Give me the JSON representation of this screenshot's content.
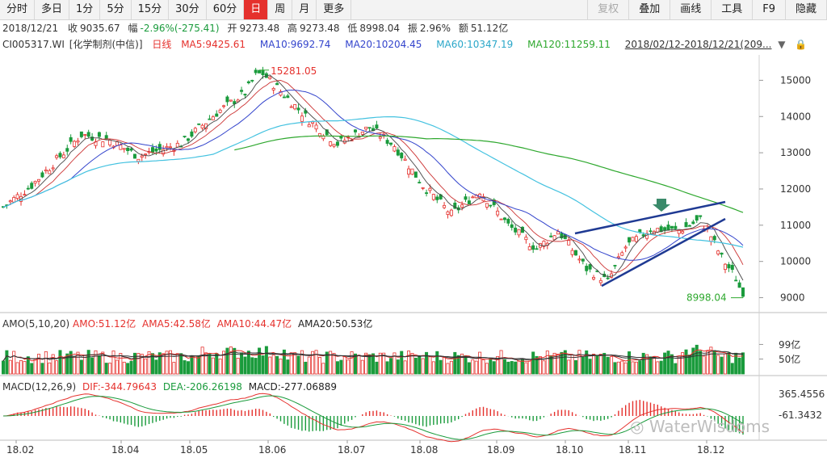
{
  "toolbar": {
    "left": [
      "分时",
      "多日",
      "1分",
      "5分",
      "15分",
      "30分",
      "60分",
      "日",
      "周",
      "月",
      "更多"
    ],
    "active": "日",
    "right": [
      "复权",
      "叠加",
      "画线",
      "工具",
      "F9",
      "隐藏"
    ]
  },
  "quote": {
    "date": "2018/12/21",
    "close_label": "收",
    "close": "9035.67",
    "change_label": "幅",
    "change": "-2.96%(-275.41)",
    "open_label": "开",
    "open": "9273.48",
    "high_label": "高",
    "high": "9273.48",
    "low_label": "低",
    "low": "8998.04",
    "amp_label": "振",
    "amp": "2.96%",
    "amount_label": "额",
    "amount": "51.12亿"
  },
  "ma_line": {
    "code": "CI005317.WI",
    "name": "[化学制剂(中信)]",
    "period": "日线",
    "ma5": "MA5:9425.61",
    "ma10": "MA10:9692.74",
    "ma20": "MA20:10204.45",
    "ma60": "MA60:10347.19",
    "ma120": "MA120:11259.11",
    "range": "2018/02/12-2018/12/21(209..."
  },
  "amo_line": {
    "title": "AMO(5,10,20)",
    "amo": "AMO:51.12亿",
    "ama5": "AMA5:42.58亿",
    "ama10": "AMA10:44.47亿",
    "ama20": "AMA20:50.53亿",
    "tick_hi": "99亿",
    "tick_lo": "50亿"
  },
  "macd_line": {
    "title": "MACD(12,26,9)",
    "dif": "DIF:-344.79643",
    "dea": "DEA:-206.26198",
    "macd": "MACD:-277.06889",
    "tick_hi": "365.4556",
    "tick_lo": "-61.3432"
  },
  "watermark": "WaterWisdoms",
  "colors": {
    "up": "#e5312d",
    "down": "#1a9b3c",
    "ma5": "#333333",
    "ma10": "#d4a017",
    "ma20": "#3344cc",
    "ma60": "#44c2e0",
    "ma120": "#2ea82e",
    "trend": "#1f3a93"
  },
  "chart_data": {
    "type": "candlestick",
    "y_ticks": [
      9000,
      10000,
      11000,
      12000,
      13000,
      14000,
      15000
    ],
    "ylim": [
      8700,
      15700
    ],
    "x_ticks": [
      "18.02",
      "18.04",
      "18.05",
      "18.06",
      "18.07",
      "18.08",
      "18.09",
      "18.10",
      "18.11",
      "18.12"
    ],
    "annotations": {
      "high": "15281.05",
      "low": "8998.04"
    },
    "price_path": [
      [
        "18.02",
        11700
      ],
      [
        "18.03",
        13200
      ],
      [
        "18.04",
        13000
      ],
      [
        "18.05",
        14000
      ],
      [
        "18.05",
        15281.05
      ],
      [
        "18.06",
        14000
      ],
      [
        "18.07",
        13400
      ],
      [
        "18.08",
        11300
      ],
      [
        "18.09",
        10000
      ],
      [
        "18.10",
        9500
      ],
      [
        "18.11",
        10900
      ],
      [
        "18.12",
        10200
      ],
      [
        "18.12",
        9035.67
      ]
    ]
  }
}
